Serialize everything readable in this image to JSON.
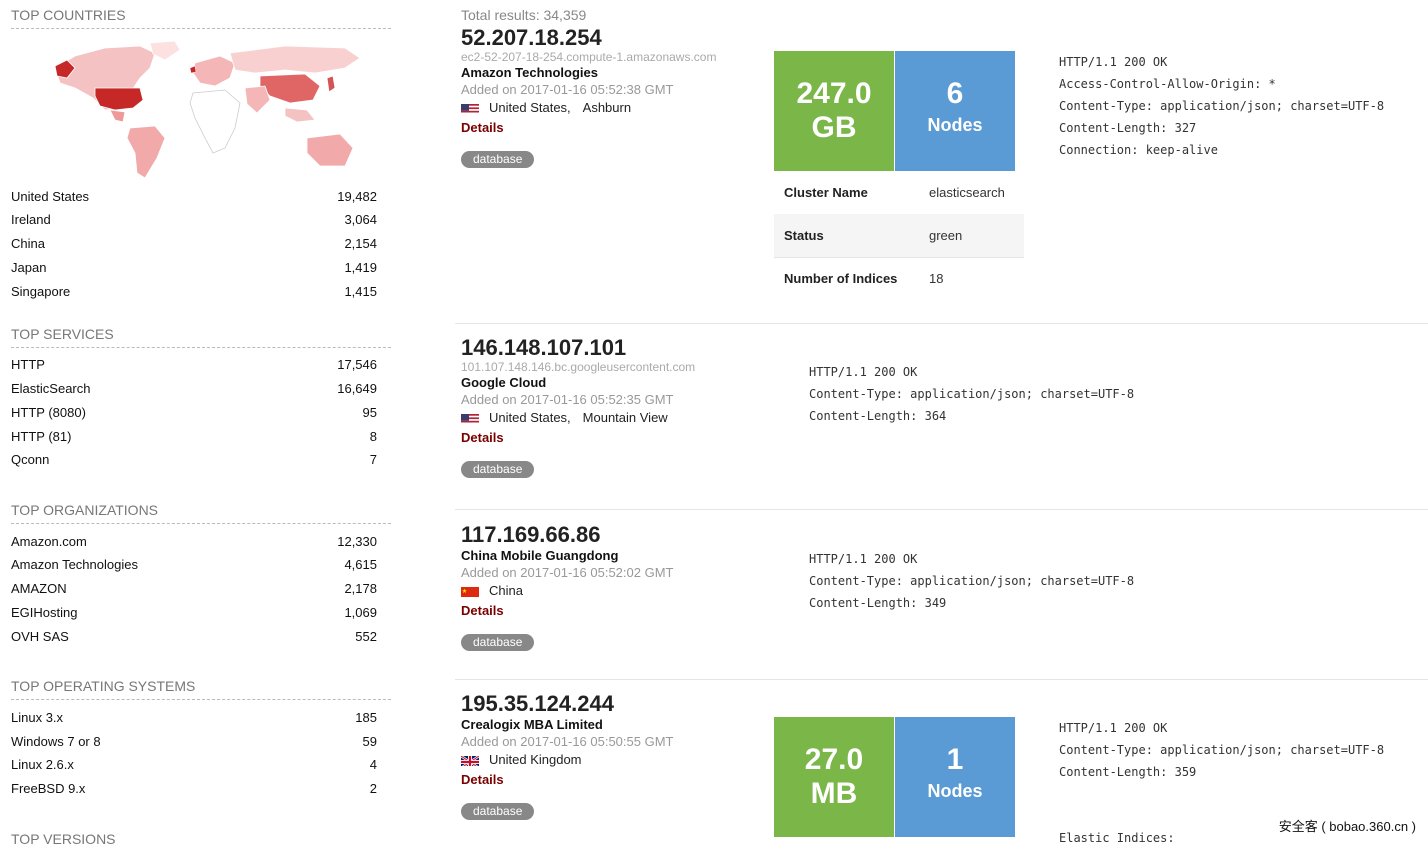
{
  "sidebar": {
    "countries": {
      "title": "TOP COUNTRIES",
      "items": [
        {
          "label": "United States",
          "value": "19,482"
        },
        {
          "label": "Ireland",
          "value": "3,064"
        },
        {
          "label": "China",
          "value": "2,154"
        },
        {
          "label": "Japan",
          "value": "1,419"
        },
        {
          "label": "Singapore",
          "value": "1,415"
        }
      ]
    },
    "services": {
      "title": "TOP SERVICES",
      "items": [
        {
          "label": "HTTP",
          "value": "17,546"
        },
        {
          "label": "ElasticSearch",
          "value": "16,649"
        },
        {
          "label": "HTTP (8080)",
          "value": "95"
        },
        {
          "label": "HTTP (81)",
          "value": "8"
        },
        {
          "label": "Qconn",
          "value": "7"
        }
      ]
    },
    "organizations": {
      "title": "TOP ORGANIZATIONS",
      "items": [
        {
          "label": "Amazon.com",
          "value": "12,330"
        },
        {
          "label": "Amazon Technologies",
          "value": "4,615"
        },
        {
          "label": "AMAZON",
          "value": "2,178"
        },
        {
          "label": "EGIHosting",
          "value": "1,069"
        },
        {
          "label": "OVH SAS",
          "value": "552"
        }
      ]
    },
    "os": {
      "title": "TOP OPERATING SYSTEMS",
      "items": [
        {
          "label": "Linux 3.x",
          "value": "185"
        },
        {
          "label": "Windows 7 or 8",
          "value": "59"
        },
        {
          "label": "Linux 2.6.x",
          "value": "4"
        },
        {
          "label": "FreeBSD 9.x",
          "value": "2"
        }
      ]
    },
    "versions": {
      "title": "TOP VERSIONS"
    }
  },
  "total": "Total results: 34,359",
  "results": [
    {
      "ip": "52.207.18.254",
      "host": "ec2-52-207-18-254.compute-1.amazonaws.com",
      "org": "Amazon Technologies",
      "added": "Added on 2017-01-16 05:52:38 GMT",
      "country": "United States,",
      "city": "Ashburn",
      "details": "Details",
      "tag": "database",
      "size_value": "247.0",
      "size_unit": "GB",
      "nodes_value": "6",
      "nodes_label": "Nodes",
      "info": [
        {
          "k": "Cluster Name",
          "v": "elasticsearch"
        },
        {
          "k": "Status",
          "v": "green"
        },
        {
          "k": "Number of Indices",
          "v": "18"
        }
      ],
      "banner": "HTTP/1.1 200 OK\nAccess-Control-Allow-Origin: *\nContent-Type: application/json; charset=UTF-8\nContent-Length: 327\nConnection: keep-alive"
    },
    {
      "ip": "146.148.107.101",
      "host": "101.107.148.146.bc.googleusercontent.com",
      "org": "Google Cloud",
      "added": "Added on 2017-01-16 05:52:35 GMT",
      "country": "United States,",
      "city": "Mountain View",
      "details": "Details",
      "tag": "database",
      "banner": "HTTP/1.1 200 OK\nContent-Type: application/json; charset=UTF-8\nContent-Length: 364"
    },
    {
      "ip": "117.169.66.86",
      "org": "China Mobile Guangdong",
      "added": "Added on 2017-01-16 05:52:02 GMT",
      "country": "China",
      "details": "Details",
      "tag": "database",
      "banner": "HTTP/1.1 200 OK\nContent-Type: application/json; charset=UTF-8\nContent-Length: 349"
    },
    {
      "ip": "195.35.124.244",
      "org": "Crealogix MBA Limited",
      "added": "Added on 2017-01-16 05:50:55 GMT",
      "country": "United Kingdom",
      "details": "Details",
      "tag": "database",
      "size_value": "27.0",
      "size_unit": "MB",
      "nodes_value": "1",
      "nodes_label": "Nodes",
      "banner": "HTTP/1.1 200 OK\nContent-Type: application/json; charset=UTF-8\nContent-Length: 359\n\n\nElastic Indices:"
    }
  ],
  "watermark": "安全客 ( bobao.360.cn )",
  "colors": {
    "green": "#7ab648",
    "blue": "#5b9bd5",
    "details": "#7a0000",
    "tag": "#888888"
  }
}
